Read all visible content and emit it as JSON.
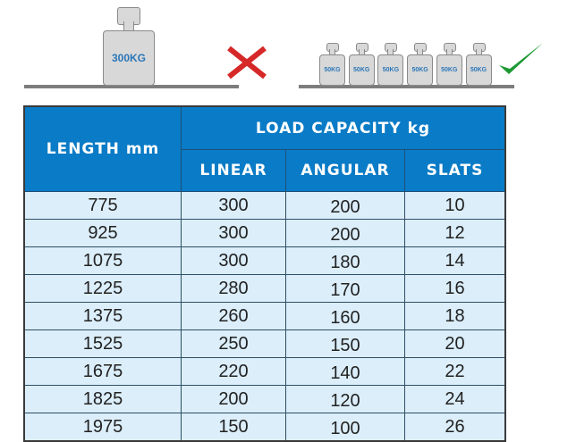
{
  "illustration": {
    "heavy_weight_label": "300KG",
    "light_weight_labels": [
      "50KG",
      "50KG",
      "50KG",
      "50KG",
      "50KG",
      "50KG"
    ],
    "wrong_icon": "red-x-icon",
    "right_icon": "green-check-icon",
    "colors": {
      "wrong": "#d62828",
      "right": "#1e9a35",
      "weight_text": "#2b77b8"
    }
  },
  "table": {
    "header_length": "LENGTH mm",
    "header_capacity": "LOAD CAPACITY kg",
    "sub_headers": [
      "LINEAR",
      "ANGULAR",
      "SLATS"
    ],
    "header_color": "#0a7bc6",
    "row_color": "#dbeefa",
    "rows": [
      [
        "775",
        "300",
        "200",
        "10"
      ],
      [
        "925",
        "300",
        "200",
        "12"
      ],
      [
        "1075",
        "300",
        "180",
        "14"
      ],
      [
        "1225",
        "280",
        "170",
        "16"
      ],
      [
        "1375",
        "260",
        "160",
        "18"
      ],
      [
        "1525",
        "250",
        "150",
        "20"
      ],
      [
        "1675",
        "220",
        "140",
        "22"
      ],
      [
        "1825",
        "200",
        "120",
        "24"
      ],
      [
        "1975",
        "150",
        "100",
        "26"
      ]
    ]
  }
}
